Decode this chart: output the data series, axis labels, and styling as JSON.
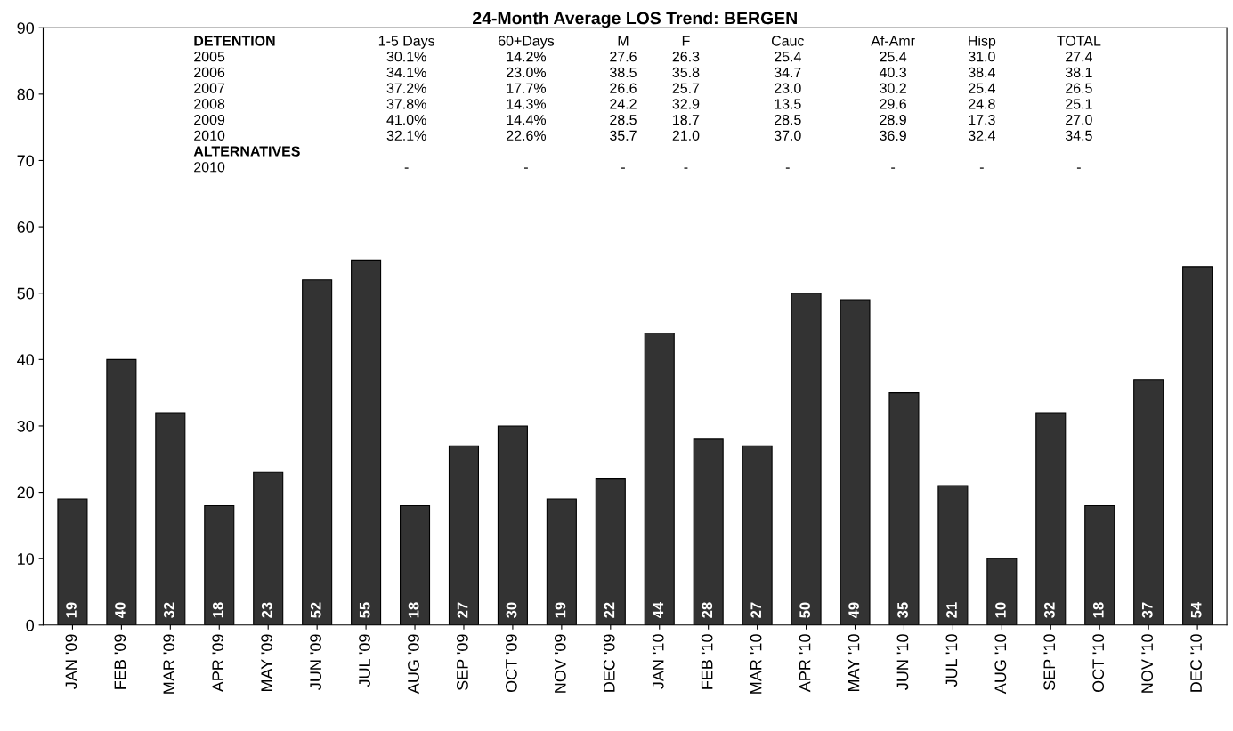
{
  "chart_data": {
    "type": "bar",
    "title": "24-Month Average LOS Trend: BERGEN",
    "categories": [
      "JAN '09",
      "FEB '09",
      "MAR '09",
      "APR '09",
      "MAY '09",
      "JUN '09",
      "JUL '09",
      "AUG '09",
      "SEP '09",
      "OCT '09",
      "NOV '09",
      "DEC '09",
      "JAN '10",
      "FEB '10",
      "MAR '10",
      "APR '10",
      "MAY '10",
      "JUN '10",
      "JUL '10",
      "AUG '10",
      "SEP '10",
      "OCT '10",
      "NOV '10",
      "DEC '10"
    ],
    "values": [
      19,
      40,
      32,
      18,
      23,
      52,
      55,
      18,
      27,
      30,
      19,
      22,
      44,
      28,
      27,
      50,
      49,
      35,
      21,
      10,
      32,
      18,
      37,
      54
    ],
    "color": "#333333",
    "data_labels": true,
    "ylim": [
      0,
      90
    ],
    "yticks": [
      0,
      10,
      20,
      30,
      40,
      50,
      60,
      70,
      80,
      90
    ],
    "grid": false,
    "legend": false,
    "annotations": [
      "DETENTION",
      "2005",
      "2006",
      "2007",
      "2008",
      "2009",
      "2010",
      "ALTERNATIVES",
      "2010",
      "1-5 Days",
      "30.1%",
      "34.1%",
      "37.2%",
      "37.8%",
      "41.0%",
      "32.1%",
      "-",
      "60+Days",
      "14.2%",
      "23.0%",
      "17.7%",
      "14.3%",
      "14.4%",
      "22.6%",
      "-",
      "M",
      "27.6",
      "38.5",
      "26.6",
      "24.2",
      "28.5",
      "35.7",
      "-",
      "F",
      "26.3",
      "35.8",
      "25.7",
      "32.9",
      "18.7",
      "21.0",
      "-",
      "Cauc",
      "25.4",
      "34.7",
      "23.0",
      "13.5",
      "28.5",
      "37.0",
      "-",
      "Af-Amr",
      "25.4",
      "40.3",
      "30.2",
      "29.6",
      "28.9",
      "36.9",
      "-",
      "Hisp",
      "31.0",
      "38.4",
      "25.4",
      "24.8",
      "17.3",
      "32.4",
      "-",
      "TOTAL",
      "27.4",
      "38.1",
      "26.5",
      "25.1",
      "27.0",
      "34.5",
      "-"
    ]
  }
}
